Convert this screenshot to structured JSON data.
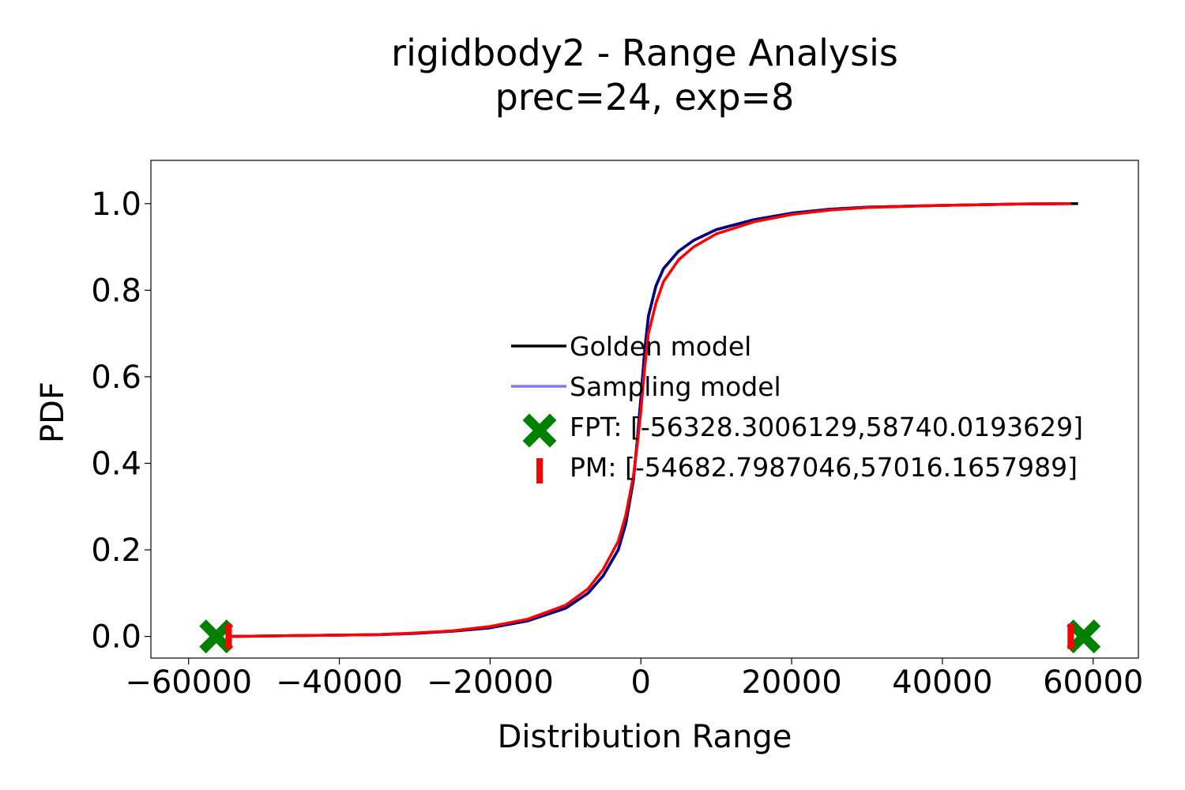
{
  "chart_data": {
    "type": "line",
    "title": "rigidbody2 - Range Analysis",
    "subtitle": "prec=24, exp=8",
    "xlabel": "Distribution Range",
    "ylabel": "PDF",
    "xlim": [
      -65000,
      66000
    ],
    "ylim": [
      -0.05,
      1.1
    ],
    "xticks": [
      -60000,
      -40000,
      -20000,
      0,
      20000,
      40000,
      60000
    ],
    "xtick_labels": [
      "−60000",
      "−40000",
      "−20000",
      "0",
      "20000",
      "40000",
      "60000"
    ],
    "yticks": [
      0.0,
      0.2,
      0.4,
      0.6,
      0.8,
      1.0
    ],
    "ytick_labels": [
      "0.0",
      "0.2",
      "0.4",
      "0.6",
      "0.8",
      "1.0"
    ],
    "grid": false,
    "legend_position": "center-right",
    "series": [
      {
        "name": "Golden model",
        "color": "#000000",
        "x": [
          -54683,
          -45000,
          -35000,
          -30000,
          -25000,
          -20000,
          -15000,
          -10000,
          -7000,
          -5000,
          -3000,
          -2000,
          -1000,
          -500,
          0,
          500,
          1000,
          2000,
          3000,
          5000,
          7000,
          10000,
          15000,
          20000,
          25000,
          30000,
          40000,
          50000,
          58000
        ],
        "y": [
          0.0,
          0.002,
          0.004,
          0.007,
          0.012,
          0.02,
          0.036,
          0.065,
          0.1,
          0.14,
          0.2,
          0.26,
          0.36,
          0.45,
          0.55,
          0.66,
          0.74,
          0.81,
          0.85,
          0.89,
          0.915,
          0.94,
          0.963,
          0.978,
          0.987,
          0.992,
          0.996,
          0.999,
          1.0
        ]
      },
      {
        "name": "Sampling model",
        "color": "#7b7bf5",
        "x": [
          -54683,
          -45000,
          -35000,
          -30000,
          -25000,
          -20000,
          -15000,
          -10000,
          -7000,
          -5000,
          -3000,
          -2000,
          -1000,
          -500,
          0,
          500,
          1000,
          2000,
          3000,
          5000,
          7000,
          10000,
          15000,
          20000,
          25000,
          30000,
          40000,
          50000,
          57000
        ],
        "y": [
          0.0,
          0.002,
          0.004,
          0.007,
          0.012,
          0.02,
          0.036,
          0.065,
          0.1,
          0.14,
          0.2,
          0.26,
          0.36,
          0.45,
          0.55,
          0.66,
          0.74,
          0.81,
          0.85,
          0.89,
          0.915,
          0.94,
          0.963,
          0.978,
          0.987,
          0.992,
          0.996,
          0.999,
          1.0
        ]
      },
      {
        "color": "#000080",
        "x": [
          -54683,
          -45000,
          -35000,
          -30000,
          -25000,
          -20000,
          -15000,
          -10000,
          -7000,
          -5000,
          -3000,
          -2000,
          -1000,
          -500,
          0,
          500,
          1000,
          2000,
          3000,
          5000,
          7000,
          10000,
          15000,
          20000,
          25000,
          30000,
          40000,
          50000,
          57000
        ],
        "y": [
          0.0,
          0.002,
          0.004,
          0.007,
          0.012,
          0.02,
          0.036,
          0.065,
          0.1,
          0.14,
          0.2,
          0.26,
          0.36,
          0.45,
          0.55,
          0.66,
          0.74,
          0.81,
          0.85,
          0.89,
          0.915,
          0.94,
          0.963,
          0.978,
          0.987,
          0.992,
          0.996,
          0.999,
          1.0
        ]
      },
      {
        "color": "#ff0000",
        "x": [
          -54683,
          -45000,
          -35000,
          -30000,
          -25000,
          -20000,
          -15000,
          -10000,
          -7000,
          -5000,
          -3000,
          -2000,
          -1000,
          -500,
          0,
          500,
          1000,
          2000,
          3000,
          5000,
          7000,
          10000,
          15000,
          20000,
          25000,
          30000,
          40000,
          50000,
          57000
        ],
        "y": [
          0.0,
          0.002,
          0.004,
          0.008,
          0.013,
          0.023,
          0.04,
          0.072,
          0.11,
          0.155,
          0.22,
          0.28,
          0.37,
          0.44,
          0.52,
          0.62,
          0.7,
          0.77,
          0.82,
          0.87,
          0.9,
          0.93,
          0.958,
          0.975,
          0.985,
          0.991,
          0.996,
          0.999,
          1.0
        ]
      }
    ],
    "markers": [
      {
        "name": "FPT: [-56328.3006129,58740.0193629]",
        "shape": "x",
        "color": "#008000",
        "points": [
          [
            -56328.3006129,
            0.0
          ],
          [
            58740.0193629,
            0.0
          ]
        ]
      },
      {
        "name": "PM: [-54682.7987046,57016.1657989]",
        "shape": "vline",
        "color": "#ff0000",
        "points": [
          [
            -54682.7987046,
            0.0
          ],
          [
            57016.1657989,
            0.0
          ]
        ]
      }
    ]
  }
}
